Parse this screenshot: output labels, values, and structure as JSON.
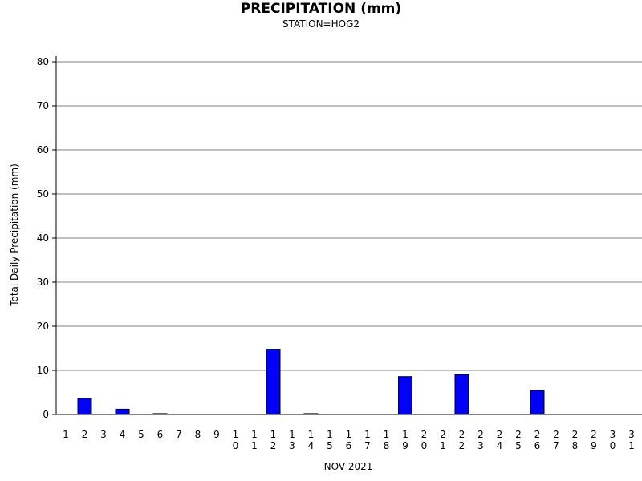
{
  "chart_data": {
    "type": "bar",
    "title": "PRECIPITATION (mm)",
    "subtitle": "STATION=HOG2",
    "xlabel": "NOV 2021",
    "ylabel": "Total Daily Precipitation (mm)",
    "ylim": [
      0,
      80
    ],
    "yticks": [
      0,
      10,
      20,
      30,
      40,
      50,
      60,
      70,
      80
    ],
    "grid": true,
    "categories": [
      "1",
      "2",
      "3",
      "4",
      "5",
      "6",
      "7",
      "8",
      "9",
      "10",
      "11",
      "12",
      "13",
      "14",
      "15",
      "16",
      "17",
      "18",
      "19",
      "20",
      "21",
      "22",
      "23",
      "24",
      "25",
      "26",
      "27",
      "28",
      "29",
      "30",
      "31"
    ],
    "values": [
      0,
      3.7,
      0,
      1.2,
      0,
      0.2,
      0,
      0,
      0,
      0,
      0,
      14.8,
      0,
      0.2,
      0,
      0,
      0,
      0,
      8.6,
      0,
      0,
      9.1,
      0,
      0,
      0,
      5.5,
      0,
      0,
      0,
      0,
      0
    ],
    "bar_color": "#0000ff"
  }
}
